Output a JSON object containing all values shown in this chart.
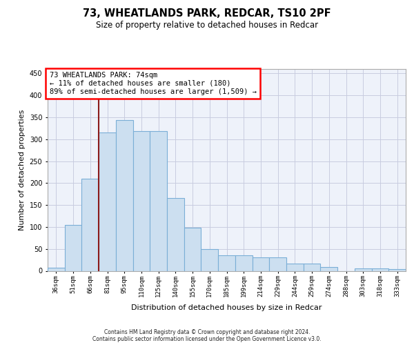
{
  "title_line1": "73, WHEATLANDS PARK, REDCAR, TS10 2PF",
  "title_line2": "Size of property relative to detached houses in Redcar",
  "xlabel": "Distribution of detached houses by size in Redcar",
  "ylabel": "Number of detached properties",
  "categories": [
    "36sqm",
    "51sqm",
    "66sqm",
    "81sqm",
    "95sqm",
    "110sqm",
    "125sqm",
    "140sqm",
    "155sqm",
    "170sqm",
    "185sqm",
    "199sqm",
    "214sqm",
    "229sqm",
    "244sqm",
    "259sqm",
    "274sqm",
    "288sqm",
    "303sqm",
    "318sqm",
    "333sqm"
  ],
  "values": [
    7,
    105,
    210,
    316,
    344,
    318,
    318,
    166,
    98,
    50,
    35,
    35,
    30,
    30,
    17,
    17,
    9,
    0,
    6,
    6,
    4
  ],
  "bar_color": "#ccdff0",
  "bar_edge_color": "#7aaed6",
  "annotation_text": "73 WHEATLANDS PARK: 74sqm\n← 11% of detached houses are smaller (180)\n89% of semi-detached houses are larger (1,509) →",
  "vline_color": "#8b1a1a",
  "vline_x": 2.5,
  "ylim": [
    0,
    460
  ],
  "yticks": [
    0,
    50,
    100,
    150,
    200,
    250,
    300,
    350,
    400,
    450
  ],
  "footer_line1": "Contains HM Land Registry data © Crown copyright and database right 2024.",
  "footer_line2": "Contains public sector information licensed under the Open Government Licence v3.0.",
  "bg_color": "#eef2fa",
  "grid_color": "#c8cce0",
  "title1_fontsize": 10.5,
  "title2_fontsize": 8.5,
  "axis_label_fontsize": 8.0,
  "tick_fontsize": 7.0,
  "xtick_fontsize": 6.5
}
